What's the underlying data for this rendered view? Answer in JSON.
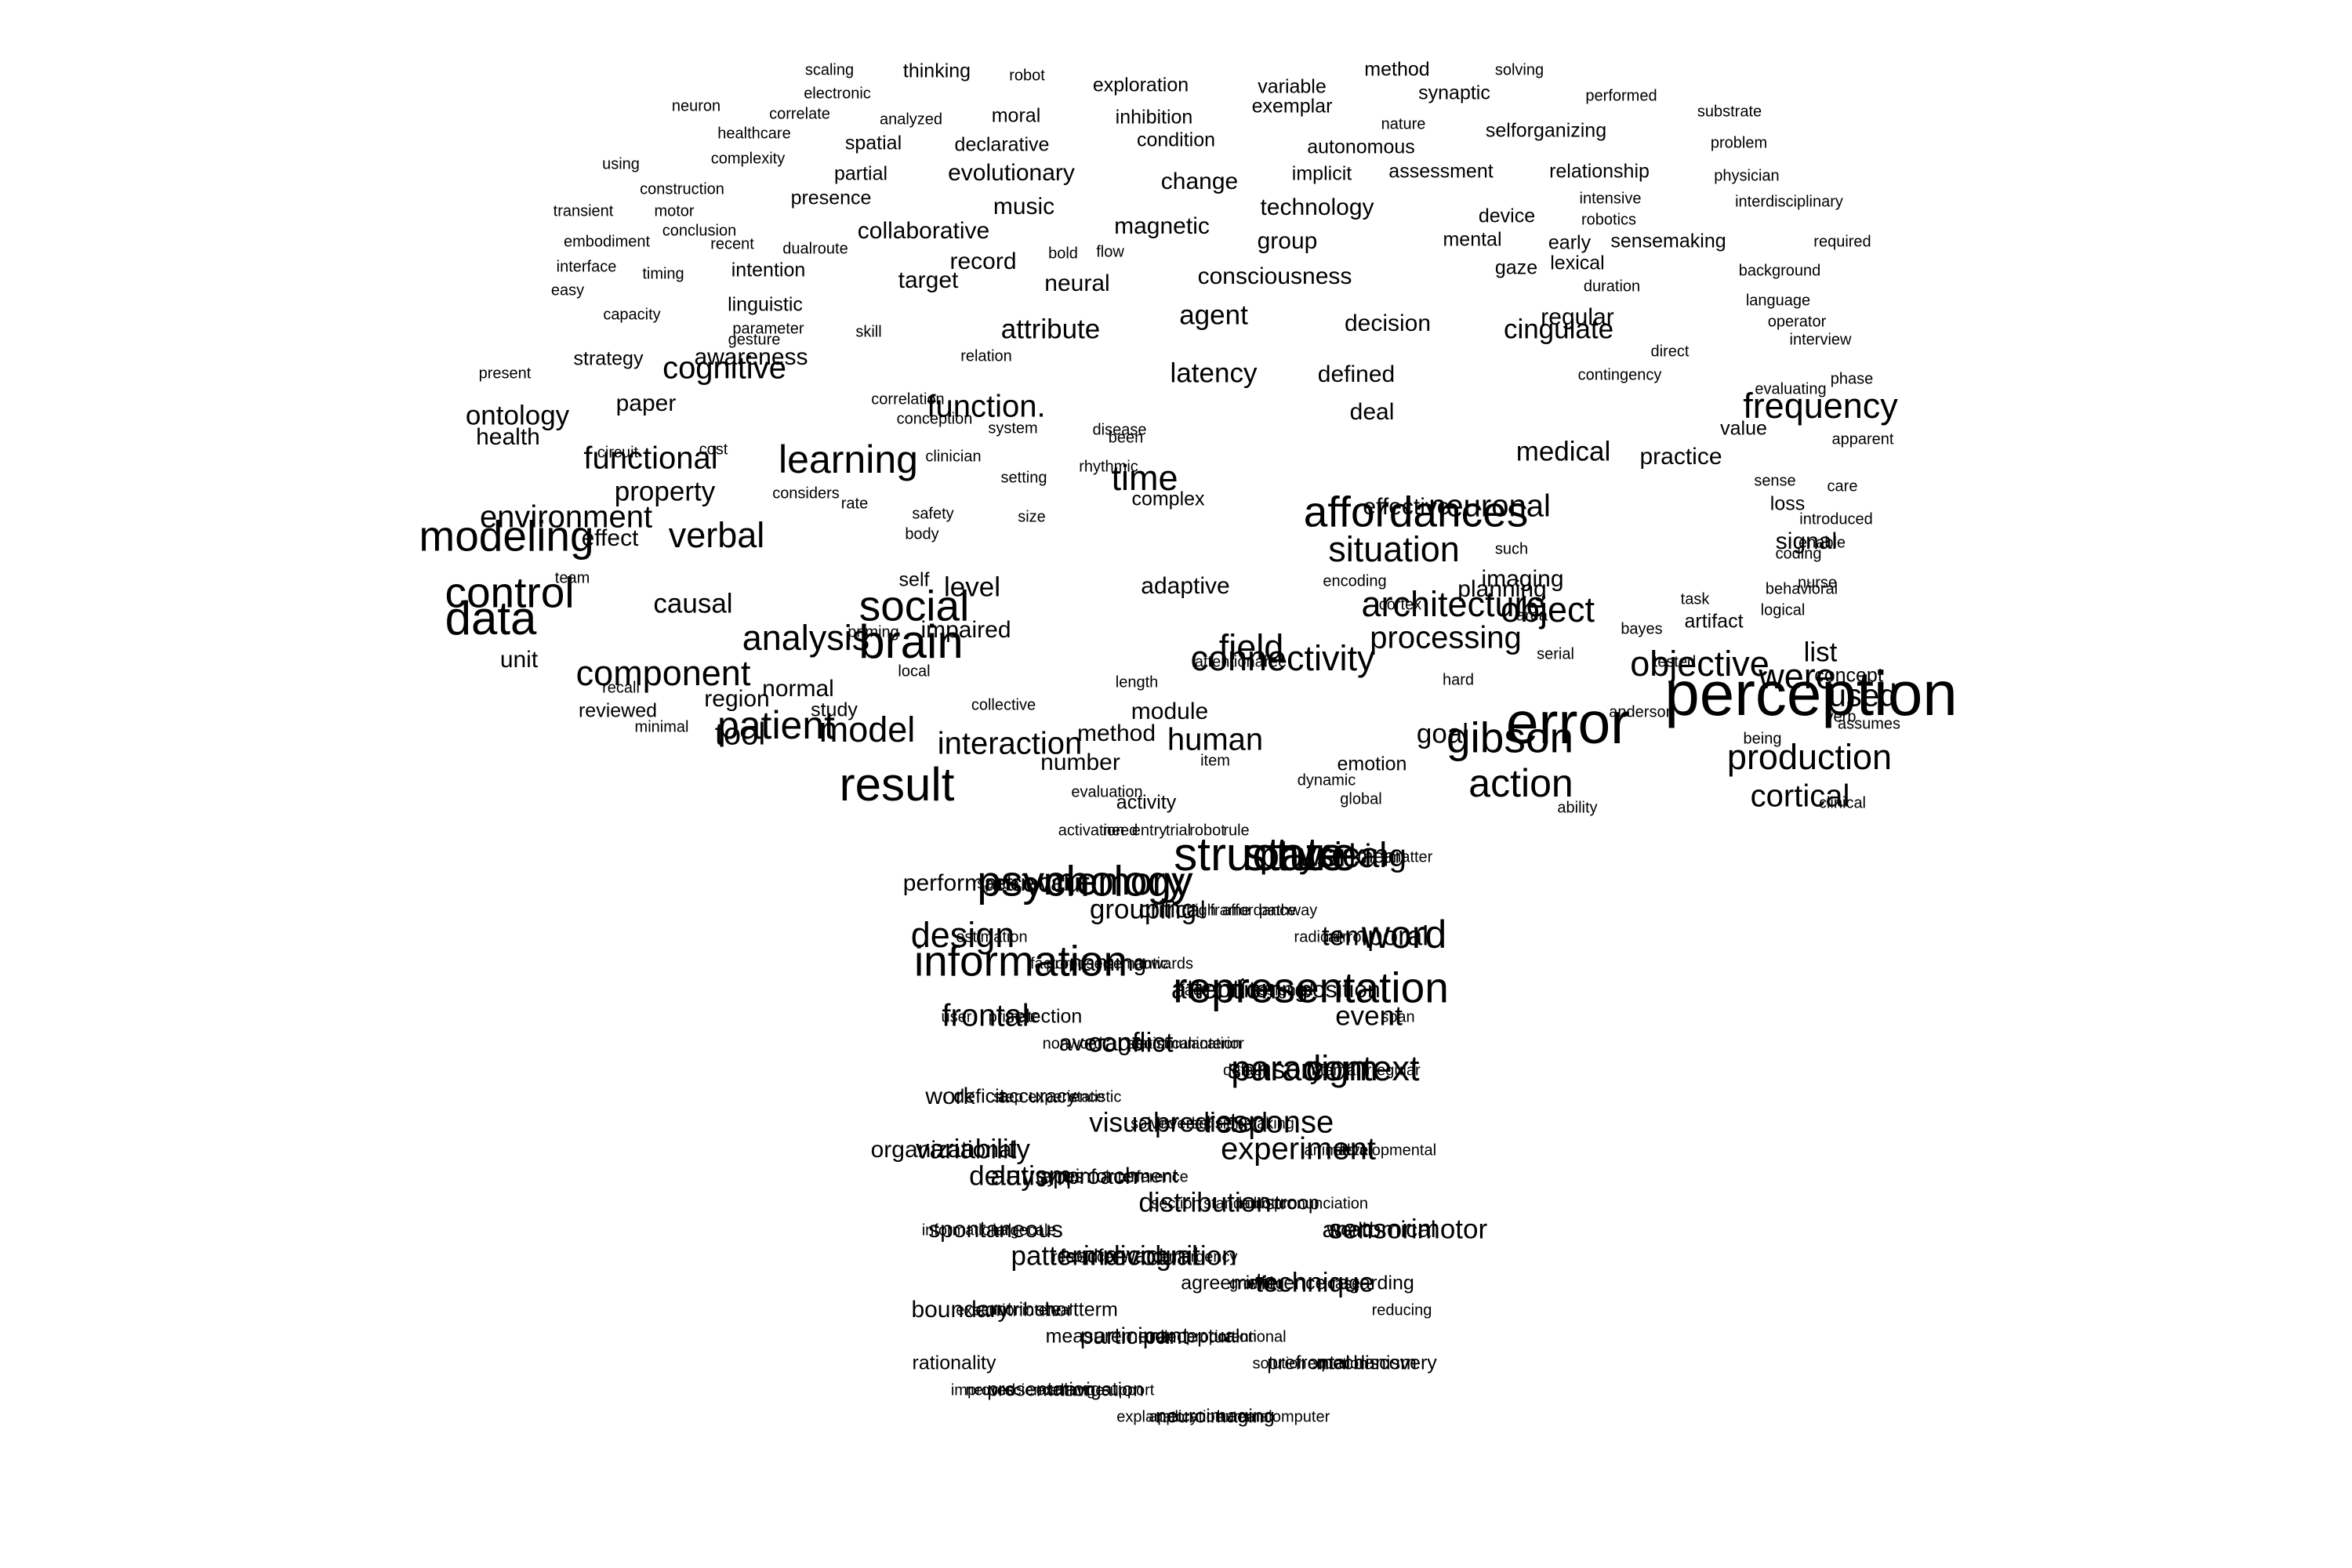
{
  "words": [
    {
      "text": "scaling",
      "size": 4
    },
    {
      "text": "thinking",
      "size": 5
    },
    {
      "text": "robot",
      "size": 4
    },
    {
      "text": "exploration",
      "size": 5
    },
    {
      "text": "method",
      "size": 5
    },
    {
      "text": "solving",
      "size": 4
    },
    {
      "text": "electronic",
      "size": 4
    },
    {
      "text": "variable",
      "size": 5
    },
    {
      "text": "synaptic",
      "size": 5
    },
    {
      "text": "neuron",
      "size": 4
    },
    {
      "text": "correlate",
      "size": 4
    },
    {
      "text": "moral",
      "size": 5
    },
    {
      "text": "inhibition",
      "size": 5
    },
    {
      "text": "exemplar",
      "size": 5
    },
    {
      "text": "performed",
      "size": 4
    },
    {
      "text": "analyzed",
      "size": 4
    },
    {
      "text": "substrate",
      "size": 4
    },
    {
      "text": "nature",
      "size": 4
    },
    {
      "text": "healthcare",
      "size": 4
    },
    {
      "text": "selforganizing",
      "size": 5
    },
    {
      "text": "spatial",
      "size": 5
    },
    {
      "text": "declarative",
      "size": 5
    },
    {
      "text": "condition",
      "size": 5
    },
    {
      "text": "autonomous",
      "size": 5
    },
    {
      "text": "problem",
      "size": 4
    },
    {
      "text": "complexity",
      "size": 4
    },
    {
      "text": "using",
      "size": 4
    },
    {
      "text": "evolutionary",
      "size": 6
    },
    {
      "text": "partial",
      "size": 5
    },
    {
      "text": "implicit",
      "size": 5
    },
    {
      "text": "assessment",
      "size": 5
    },
    {
      "text": "relationship",
      "size": 5
    },
    {
      "text": "physician",
      "size": 4
    },
    {
      "text": "change",
      "size": 6
    },
    {
      "text": "construction",
      "size": 4
    },
    {
      "text": "presence",
      "size": 5
    },
    {
      "text": "intensive",
      "size": 4
    },
    {
      "text": "interdisciplinary",
      "size": 4
    },
    {
      "text": "music",
      "size": 6
    },
    {
      "text": "technology",
      "size": 6
    },
    {
      "text": "device",
      "size": 5
    },
    {
      "text": "transient",
      "size": 4
    },
    {
      "text": "motor",
      "size": 4
    },
    {
      "text": "robotics",
      "size": 4
    },
    {
      "text": "magnetic",
      "size": 6
    },
    {
      "text": "conclusion",
      "size": 4
    },
    {
      "text": "collaborative",
      "size": 6
    },
    {
      "text": "mental",
      "size": 5
    },
    {
      "text": "group",
      "size": 6
    },
    {
      "text": "sensemaking",
      "size": 5
    },
    {
      "text": "early",
      "size": 5
    },
    {
      "text": "required",
      "size": 4
    },
    {
      "text": "embodiment",
      "size": 4
    },
    {
      "text": "recent",
      "size": 4
    },
    {
      "text": "dualroute",
      "size": 4
    },
    {
      "text": "bold",
      "size": 4
    },
    {
      "text": "flow",
      "size": 4
    },
    {
      "text": "record",
      "size": 6
    },
    {
      "text": "gaze",
      "size": 5
    },
    {
      "text": "lexical",
      "size": 5
    },
    {
      "text": "background",
      "size": 4
    },
    {
      "text": "interface",
      "size": 4
    },
    {
      "text": "timing",
      "size": 4
    },
    {
      "text": "intention",
      "size": 5
    },
    {
      "text": "target",
      "size": 6
    },
    {
      "text": "neural",
      "size": 6
    },
    {
      "text": "consciousness",
      "size": 6
    },
    {
      "text": "duration",
      "size": 4
    },
    {
      "text": "easy",
      "size": 4
    },
    {
      "text": "language",
      "size": 4
    },
    {
      "text": "linguistic",
      "size": 5
    },
    {
      "text": "agent",
      "size": 7
    },
    {
      "text": "capacity",
      "size": 4
    },
    {
      "text": "regular",
      "size": 6
    },
    {
      "text": "parameter",
      "size": 4
    },
    {
      "text": "operator",
      "size": 4
    },
    {
      "text": "skill",
      "size": 4
    },
    {
      "text": "attribute",
      "size": 7
    },
    {
      "text": "decision",
      "size": 6
    },
    {
      "text": "cingulate",
      "size": 7
    },
    {
      "text": "direct",
      "size": 4
    },
    {
      "text": "gesture",
      "size": 4
    },
    {
      "text": "interview",
      "size": 4
    },
    {
      "text": "relation",
      "size": 4
    },
    {
      "text": "strategy",
      "size": 5
    },
    {
      "text": "awareness",
      "size": 6
    },
    {
      "text": "cognitive",
      "size": 8
    },
    {
      "text": "latency",
      "size": 7
    },
    {
      "text": "defined",
      "size": 6
    },
    {
      "text": "contingency",
      "size": 4
    },
    {
      "text": "phase",
      "size": 4
    },
    {
      "text": "present",
      "size": 4
    },
    {
      "text": "paper",
      "size": 6
    },
    {
      "text": "evaluating",
      "size": 4
    },
    {
      "text": "correlation",
      "size": 4
    },
    {
      "text": "function.",
      "size": 8
    },
    {
      "text": "deal",
      "size": 6
    },
    {
      "text": "frequency",
      "size": 9
    },
    {
      "text": "ontology",
      "size": 7
    },
    {
      "text": "conception",
      "size": 4
    },
    {
      "text": "system",
      "size": 4
    },
    {
      "text": "disease",
      "size": 4
    },
    {
      "text": "value",
      "size": 5
    },
    {
      "text": "health",
      "size": 6
    },
    {
      "text": "clinician",
      "size": 4
    },
    {
      "text": "been",
      "size": 4
    },
    {
      "text": "apparent",
      "size": 4
    },
    {
      "text": "circuit",
      "size": 4
    },
    {
      "text": "cost",
      "size": 4
    },
    {
      "text": "medical",
      "size": 7
    },
    {
      "text": "practice",
      "size": 6
    },
    {
      "text": "rhythmic",
      "size": 4
    },
    {
      "text": "functional",
      "size": 8
    },
    {
      "text": "learning",
      "size": 10
    },
    {
      "text": "time",
      "size": 9
    },
    {
      "text": "sense",
      "size": 4
    },
    {
      "text": "setting",
      "size": 4
    },
    {
      "text": "complex",
      "size": 5
    },
    {
      "text": "care",
      "size": 4
    },
    {
      "text": "property",
      "size": 7
    },
    {
      "text": "considers",
      "size": 4
    },
    {
      "text": "rate",
      "size": 4
    },
    {
      "text": "size",
      "size": 4
    },
    {
      "text": "neuronal",
      "size": 8
    },
    {
      "text": "loss",
      "size": 5
    },
    {
      "text": "introduced",
      "size": 4
    },
    {
      "text": "safety",
      "size": 4
    },
    {
      "text": "effective",
      "size": 6
    },
    {
      "text": "affordances",
      "size": 11
    },
    {
      "text": "enable",
      "size": 4
    },
    {
      "text": "environment",
      "size": 8
    },
    {
      "text": "body",
      "size": 4
    },
    {
      "text": "such",
      "size": 4
    },
    {
      "text": "signal",
      "size": 6
    },
    {
      "text": "effect",
      "size": 6
    },
    {
      "text": "verbal",
      "size": 9
    },
    {
      "text": "coding",
      "size": 4
    },
    {
      "text": "nurse",
      "size": 4
    },
    {
      "text": "modeling",
      "size": 11
    },
    {
      "text": "situation",
      "size": 9
    },
    {
      "text": "self",
      "size": 5
    },
    {
      "text": "adaptive",
      "size": 6
    },
    {
      "text": "team",
      "size": 4
    },
    {
      "text": "encoding",
      "size": 4
    },
    {
      "text": "imaging",
      "size": 6
    },
    {
      "text": "architecture",
      "size": 9
    },
    {
      "text": "task",
      "size": 4
    },
    {
      "text": "behavioral",
      "size": 4
    },
    {
      "text": "cortex",
      "size": 4
    },
    {
      "text": "planning",
      "size": 6
    },
    {
      "text": "object",
      "size": 9
    },
    {
      "text": "level",
      "size": 7
    },
    {
      "text": "logical",
      "size": 4
    },
    {
      "text": "social",
      "size": 11
    },
    {
      "text": "control",
      "size": 11
    },
    {
      "text": "causal",
      "size": 7
    },
    {
      "text": "area",
      "size": 4
    },
    {
      "text": "artifact",
      "size": 5
    },
    {
      "text": "priming",
      "size": 4
    },
    {
      "text": "impaired",
      "size": 6
    },
    {
      "text": "analysis",
      "size": 9
    },
    {
      "text": "field",
      "size": 9
    },
    {
      "text": "processing",
      "size": 8
    },
    {
      "text": "serial",
      "size": 4
    },
    {
      "text": "tested",
      "size": 4
    },
    {
      "text": "list",
      "size": 7
    },
    {
      "text": "data",
      "size": 12
    },
    {
      "text": "brain",
      "size": 12
    },
    {
      "text": "local",
      "size": 4
    },
    {
      "text": "collective",
      "size": 4
    },
    {
      "text": "bayes",
      "size": 4
    },
    {
      "text": "connectivity",
      "size": 9
    },
    {
      "text": "concept",
      "size": 5
    },
    {
      "text": "unit",
      "size": 6
    },
    {
      "text": "free",
      "size": 4
    },
    {
      "text": "hard",
      "size": 4
    },
    {
      "text": "were",
      "size": 9
    },
    {
      "text": "number",
      "size": 6
    },
    {
      "text": "attentional",
      "size": 4
    },
    {
      "text": "length",
      "size": 4
    },
    {
      "text": "module",
      "size": 6
    },
    {
      "text": "objective",
      "size": 9
    },
    {
      "text": "perception",
      "size": 16
    },
    {
      "text": "component",
      "size": 9
    },
    {
      "text": "normal",
      "size": 6
    },
    {
      "text": "recall",
      "size": 4
    },
    {
      "text": "anderson",
      "size": 4
    },
    {
      "text": "region",
      "size": 6
    },
    {
      "text": "verb",
      "size": 4
    },
    {
      "text": "reviewed",
      "size": 5
    },
    {
      "text": "study",
      "size": 5
    },
    {
      "text": "used",
      "size": 8
    },
    {
      "text": "minimal",
      "size": 4
    },
    {
      "text": "error",
      "size": 15
    },
    {
      "text": "patient",
      "size": 10
    },
    {
      "text": "tool",
      "size": 8
    },
    {
      "text": "model",
      "size": 9
    },
    {
      "text": "interaction",
      "size": 8
    },
    {
      "text": "method",
      "size": 6
    },
    {
      "text": "goal",
      "size": 7
    },
    {
      "text": "being",
      "size": 4
    },
    {
      "text": "assumes",
      "size": 4
    },
    {
      "text": "human",
      "size": 8
    },
    {
      "text": "gibson",
      "size": 11
    },
    {
      "text": "item",
      "size": 4
    },
    {
      "text": "emotion",
      "size": 5
    },
    {
      "text": "dynamic",
      "size": 4
    },
    {
      "text": "production",
      "size": 9
    },
    {
      "text": "action",
      "size": 10
    },
    {
      "text": "result",
      "size": 12
    },
    {
      "text": "evaluation",
      "size": 4
    },
    {
      "text": "global",
      "size": 4
    },
    {
      "text": "cortical",
      "size": 8
    },
    {
      "text": "clinical",
      "size": 4
    },
    {
      "text": "activity",
      "size": 5
    },
    {
      "text": "ability",
      "size": 4
    },
    {
      "text": "activation",
      "size": 4
    },
    {
      "text": "need",
      "size": 4
    },
    {
      "text": "entry",
      "size": 4
    },
    {
      "text": "trial",
      "size": 4
    },
    {
      "text": "robot",
      "size": 4
    },
    {
      "text": "rule",
      "size": 4
    },
    {
      "text": "structure",
      "size": 12
    },
    {
      "text": "state",
      "size": 12
    },
    {
      "text": "physical",
      "size": 9
    },
    {
      "text": "working",
      "size": 8
    },
    {
      "text": "mean",
      "size": 5
    },
    {
      "text": "matter",
      "size": 4
    },
    {
      "text": "performance",
      "size": 6
    },
    {
      "text": "space",
      "size": 4
    },
    {
      "text": "retrieval",
      "size": 6
    },
    {
      "text": "occur",
      "size": 7
    },
    {
      "text": "psychology",
      "size": 11
    },
    {
      "text": "memory",
      "size": 10
    },
    {
      "text": "grouping",
      "size": 7
    },
    {
      "text": "critical",
      "size": 6
    },
    {
      "text": "high",
      "size": 4
    },
    {
      "text": "frame",
      "size": 4
    },
    {
      "text": "affordance",
      "size": 4
    },
    {
      "text": "pathway",
      "size": 4
    },
    {
      "text": "radical",
      "size": 4
    },
    {
      "text": "mirror",
      "size": 4
    },
    {
      "text": "temporal",
      "size": 7
    },
    {
      "text": "word",
      "size": 10
    },
    {
      "text": "design",
      "size": 9
    },
    {
      "text": "estimation",
      "size": 4
    },
    {
      "text": "information",
      "size": 11
    },
    {
      "text": "factor",
      "size": 4
    },
    {
      "text": "proposed",
      "size": 4
    },
    {
      "text": "naming",
      "size": 6
    },
    {
      "text": "semantic",
      "size": 4
    },
    {
      "text": "towards",
      "size": 4
    },
    {
      "text": "face",
      "size": 4
    },
    {
      "text": "attention",
      "size": 7
    },
    {
      "text": "monitoring",
      "size": 6
    },
    {
      "text": "assigned",
      "size": 4
    },
    {
      "text": "representation",
      "size": 11
    },
    {
      "text": "position",
      "size": 6
    },
    {
      "text": "event",
      "size": 7
    },
    {
      "text": "span",
      "size": 4
    },
    {
      "text": "user",
      "size": 4
    },
    {
      "text": "frontal",
      "size": 8
    },
    {
      "text": "primate",
      "size": 4
    },
    {
      "text": "selection",
      "size": 5
    },
    {
      "text": "nonword",
      "size": 4
    },
    {
      "text": "average",
      "size": 6
    },
    {
      "text": "conflict",
      "size": 7
    },
    {
      "text": "statistical",
      "size": 4
    },
    {
      "text": "communication",
      "size": 4
    },
    {
      "text": "anterior",
      "size": 4
    },
    {
      "text": "default",
      "size": 4
    },
    {
      "text": "sensory",
      "size": 7
    },
    {
      "text": "paradigm",
      "size": 9
    },
    {
      "text": "internal",
      "size": 4
    },
    {
      "text": "context",
      "size": 9
    },
    {
      "text": "irregular",
      "size": 4
    },
    {
      "text": "work",
      "size": 6
    },
    {
      "text": "deficit",
      "size": 5
    },
    {
      "text": "step",
      "size": 4
    },
    {
      "text": "accuracy",
      "size": 5
    },
    {
      "text": "experience",
      "size": 4
    },
    {
      "text": "statistic",
      "size": 4
    },
    {
      "text": "visual",
      "size": 7
    },
    {
      "text": "solved",
      "size": 4
    },
    {
      "text": "inverse",
      "size": 4
    },
    {
      "text": "predicted",
      "size": 7
    },
    {
      "text": "decisionmaking",
      "size": 4
    },
    {
      "text": "response",
      "size": 8
    },
    {
      "text": "experiment",
      "size": 8
    },
    {
      "text": "animal",
      "size": 4
    },
    {
      "text": "total",
      "size": 4
    },
    {
      "text": "developmental",
      "size": 4
    },
    {
      "text": "organizational",
      "size": 6
    },
    {
      "text": "variability",
      "size": 7
    },
    {
      "text": "delay",
      "size": 7
    },
    {
      "text": "autism",
      "size": 7
    },
    {
      "text": "gyrus",
      "size": 5
    },
    {
      "text": "approach",
      "size": 6
    },
    {
      "text": "reinforcement",
      "size": 5
    },
    {
      "text": "interference",
      "size": 4
    },
    {
      "text": "section",
      "size": 4
    },
    {
      "text": "distribution",
      "size": 7
    },
    {
      "text": "standard",
      "size": 4
    },
    {
      "text": "robotic",
      "size": 4
    },
    {
      "text": "stroop",
      "size": 5
    },
    {
      "text": "pronunciation",
      "size": 4
    },
    {
      "text": "world",
      "size": 5
    },
    {
      "text": "anatomical",
      "size": 6
    },
    {
      "text": "sensorimotor",
      "size": 7
    },
    {
      "text": "informational",
      "size": 4
    },
    {
      "text": "spontaneous",
      "size": 6
    },
    {
      "text": "largecale",
      "size": 4
    },
    {
      "text": "pattern",
      "size": 7
    },
    {
      "text": "resource",
      "size": 4
    },
    {
      "text": "feedforward",
      "size": 5
    },
    {
      "text": "individual",
      "size": 7
    },
    {
      "text": "recognition",
      "size": 7
    },
    {
      "text": "emergency",
      "size": 4
    },
    {
      "text": "agreement",
      "size": 5
    },
    {
      "text": "growing",
      "size": 4
    },
    {
      "text": "inference",
      "size": 5
    },
    {
      "text": "technique",
      "size": 7
    },
    {
      "text": "case",
      "size": 4
    },
    {
      "text": "regarding",
      "size": 5
    },
    {
      "text": "reducing",
      "size": 4
    },
    {
      "text": "boundary",
      "size": 6
    },
    {
      "text": "execution",
      "size": 4
    },
    {
      "text": "contribute",
      "size": 5
    },
    {
      "text": "interval",
      "size": 4
    },
    {
      "text": "shortterm",
      "size": 5
    },
    {
      "text": "measurement",
      "size": 5
    },
    {
      "text": "participant",
      "size": 6
    },
    {
      "text": "rule",
      "size": 4
    },
    {
      "text": "conceptual",
      "size": 5
    },
    {
      "text": "proportion",
      "size": 4
    },
    {
      "text": "intentional",
      "size": 4
    },
    {
      "text": "solution",
      "size": 4
    },
    {
      "text": "prefrontal",
      "size": 5
    },
    {
      "text": "equation",
      "size": 4
    },
    {
      "text": "mechanism",
      "size": 5
    },
    {
      "text": "discovery",
      "size": 5
    },
    {
      "text": "rationality",
      "size": 5
    },
    {
      "text": "improved",
      "size": 4
    },
    {
      "text": "neuroscience",
      "size": 4
    },
    {
      "text": "presentation",
      "size": 5
    },
    {
      "text": "exchange",
      "size": 4
    },
    {
      "text": "navigation",
      "size": 5
    },
    {
      "text": "support",
      "size": 4
    },
    {
      "text": "explanatory",
      "size": 4
    },
    {
      "text": "application",
      "size": 4
    },
    {
      "text": "neuroimaging",
      "size": 5
    },
    {
      "text": "external",
      "size": 4
    },
    {
      "text": "humancomputer",
      "size": 4
    }
  ]
}
